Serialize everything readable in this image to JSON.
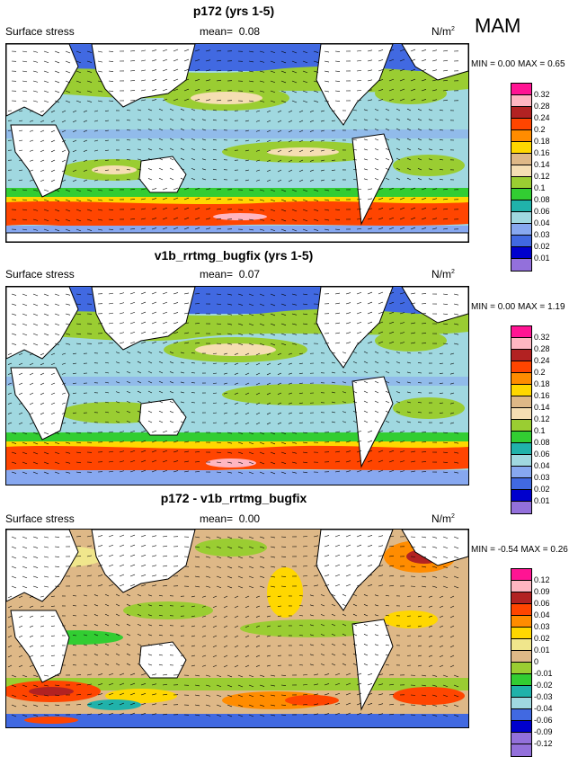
{
  "season": "MAM",
  "panels": [
    {
      "title": "p172 (yrs 1-5)",
      "variable": "Surface stress",
      "mean_label": "mean=",
      "mean_value": "0.08",
      "units": "N/m",
      "units_exp": "2",
      "min_label": "MIN =",
      "min_value": "0.00",
      "max_label": "MAX =",
      "max_value": "0.65",
      "colorbar": {
        "ticks": [
          "0.32",
          "0.28",
          "0.24",
          "0.2",
          "0.18",
          "0.16",
          "0.14",
          "0.12",
          "0.1",
          "0.08",
          "0.06",
          "0.04",
          "0.03",
          "0.02",
          "0.01"
        ],
        "colors": [
          "#ff1493",
          "#ffb6c1",
          "#b22222",
          "#ff4500",
          "#ff8c00",
          "#ffd700",
          "#deb887",
          "#f5deb3",
          "#9acd32",
          "#32cd32",
          "#20b2aa",
          "#a0d8e0",
          "#87a8f0",
          "#4169e1",
          "#0000cd",
          "#9370db"
        ]
      }
    },
    {
      "title": "v1b_rrtmg_bugfix (yrs 1-5)",
      "variable": "Surface stress",
      "mean_label": "mean=",
      "mean_value": "0.07",
      "units": "N/m",
      "units_exp": "2",
      "min_label": "MIN =",
      "min_value": "0.00",
      "max_label": "MAX =",
      "max_value": "1.19",
      "colorbar": {
        "ticks": [
          "0.32",
          "0.28",
          "0.24",
          "0.2",
          "0.18",
          "0.16",
          "0.14",
          "0.12",
          "0.1",
          "0.08",
          "0.06",
          "0.04",
          "0.03",
          "0.02",
          "0.01"
        ],
        "colors": [
          "#ff1493",
          "#ffb6c1",
          "#b22222",
          "#ff4500",
          "#ff8c00",
          "#ffd700",
          "#deb887",
          "#f5deb3",
          "#9acd32",
          "#32cd32",
          "#20b2aa",
          "#a0d8e0",
          "#87a8f0",
          "#4169e1",
          "#0000cd",
          "#9370db"
        ]
      }
    },
    {
      "title": "p172 - v1b_rrtmg_bugfix",
      "variable": "Surface stress",
      "mean_label": "mean=",
      "mean_value": "0.00",
      "units": "N/m",
      "units_exp": "2",
      "min_label": "MIN =",
      "min_value": "-0.54",
      "max_label": "MAX =",
      "max_value": "0.26",
      "colorbar": {
        "ticks": [
          "0.12",
          "0.09",
          "0.06",
          "0.04",
          "0.03",
          "0.02",
          "0.01",
          "0",
          "-0.01",
          "-0.02",
          "-0.03",
          "-0.04",
          "-0.06",
          "-0.09",
          "-0.12"
        ],
        "colors": [
          "#ff1493",
          "#ffb6c1",
          "#b22222",
          "#ff4500",
          "#ff8c00",
          "#ffd700",
          "#f0e68c",
          "#deb887",
          "#9acd32",
          "#32cd32",
          "#20b2aa",
          "#a0d8e0",
          "#4169e1",
          "#0000cd",
          "#9370db",
          "#9370db"
        ]
      }
    }
  ]
}
